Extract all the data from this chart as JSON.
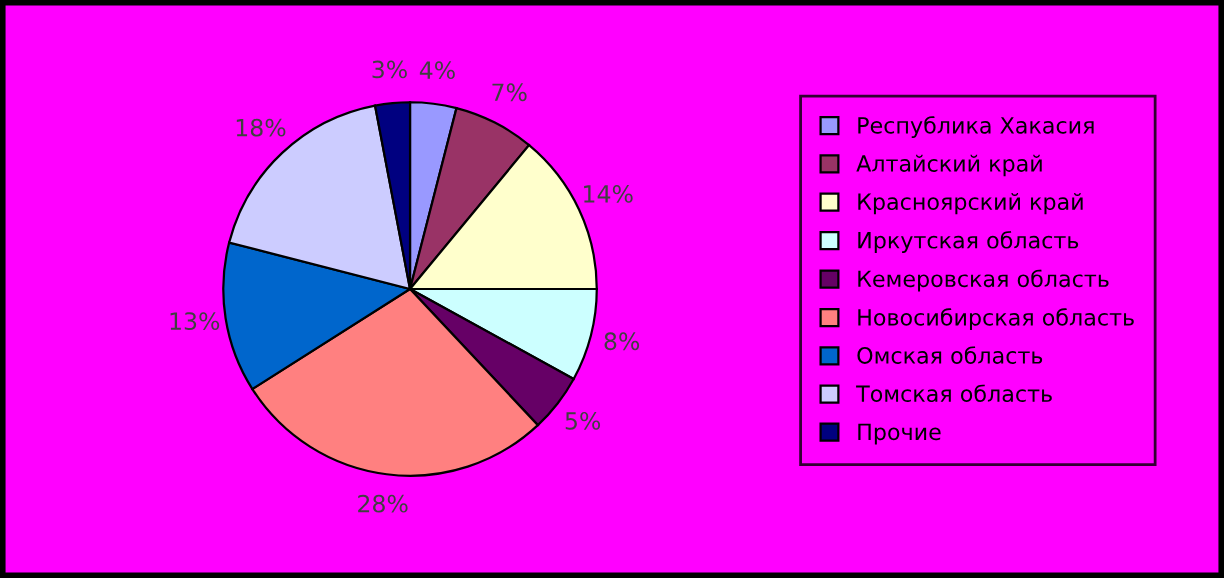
{
  "chart_data": {
    "type": "pie",
    "categories": [
      "Республика Хакасия",
      "Алтайский край",
      "Красноярский край",
      "Иркутская область",
      "Кемеровская область",
      "Новосибирская область",
      "Омская область",
      "Томская область",
      "Прочие"
    ],
    "values": [
      4,
      7,
      14,
      8,
      5,
      28,
      13,
      18,
      3
    ],
    "value_labels": [
      "4%",
      "7%",
      "14%",
      "8%",
      "5%",
      "28%",
      "13%",
      "18%",
      "3%"
    ],
    "colors": [
      "#9999ff",
      "#993366",
      "#ffffcc",
      "#ccffff",
      "#660066",
      "#ff8080",
      "#0066cc",
      "#ccccff",
      "#000080"
    ],
    "legend": "right"
  }
}
